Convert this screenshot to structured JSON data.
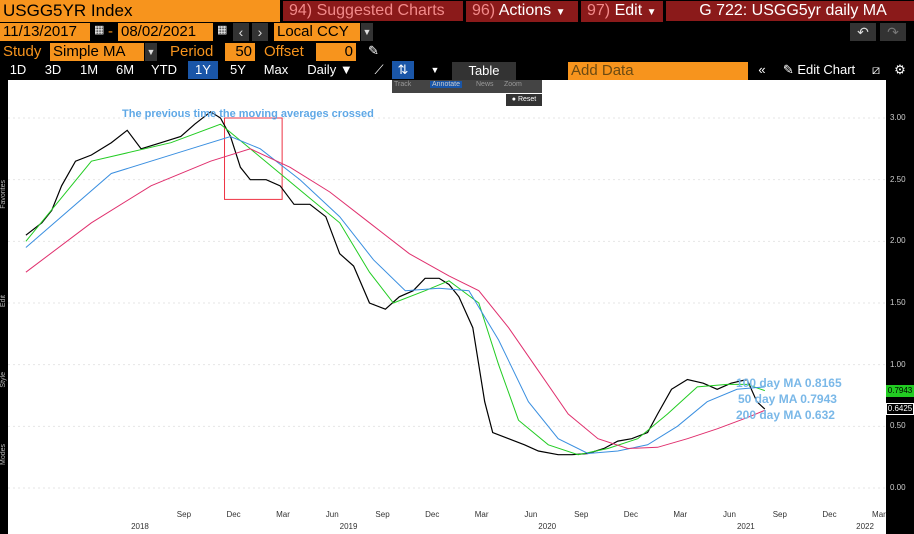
{
  "header": {
    "ticker": "USGG5YR Index",
    "suggested": "Suggested Charts",
    "suggested_num": "94)",
    "actions": "Actions",
    "actions_num": "96)",
    "edit": "Edit",
    "edit_num": "97)",
    "chart_id": "G 722: USGG5yr daily MA"
  },
  "range": {
    "start": "11/13/2017",
    "sep": "-",
    "end": "08/02/2021",
    "currency": "Local CCY"
  },
  "study": {
    "label": "Study",
    "value": "Simple MA",
    "period_label": "Period",
    "period": "50",
    "offset_label": "Offset",
    "offset": "0"
  },
  "toolbar": {
    "periods": [
      "1D",
      "3D",
      "1M",
      "6M",
      "YTD",
      "1Y",
      "5Y",
      "Max"
    ],
    "selected_period": "1Y",
    "interval": "Daily",
    "table": "Table",
    "add_data": "Add Data",
    "edit_chart": "Edit Chart"
  },
  "mini_toolbar": {
    "items": [
      "Track",
      "Annotate",
      "News",
      "Zoom"
    ],
    "reset": "Reset"
  },
  "side_labels": [
    "Favorites",
    "Edit",
    "Style",
    "Modes"
  ],
  "annotation": "The previous time the moving averages crossed",
  "legend_labels": [
    {
      "text": "100 day MA 0.8165",
      "color": "#7ab8e8"
    },
    {
      "text": "50 day MA 0.7943",
      "color": "#7ab8e8"
    },
    {
      "text": "200 day MA 0.632",
      "color": "#7ab8e8"
    }
  ],
  "badges": {
    "ma50": "0.7943",
    "last": "0.6425"
  },
  "chart_data": {
    "type": "line",
    "title": "",
    "ylim": [
      0.0,
      3.0
    ],
    "y_ticks": [
      "3.00",
      "2.50",
      "2.00",
      "1.50",
      "1.00",
      "0.50",
      "0.00"
    ],
    "x_months": [
      "Sep",
      "Dec",
      "Mar",
      "Jun",
      "Sep",
      "Dec",
      "Mar",
      "Jun",
      "Sep",
      "Dec",
      "Mar",
      "Jun",
      "Sep",
      "Dec",
      "Mar"
    ],
    "x_years": [
      "2018",
      "2019",
      "2020",
      "2021",
      "2022"
    ],
    "colors": {
      "price": "#000000",
      "ma50": "#22cc22",
      "ma100": "#3a8fe0",
      "ma200": "#e0306e"
    },
    "series": [
      {
        "name": "USGG5YR Index",
        "points": [
          [
            2017.87,
            2.05
          ],
          [
            2017.95,
            2.15
          ],
          [
            2018.0,
            2.25
          ],
          [
            2018.05,
            2.45
          ],
          [
            2018.12,
            2.65
          ],
          [
            2018.2,
            2.7
          ],
          [
            2018.3,
            2.8
          ],
          [
            2018.38,
            2.9
          ],
          [
            2018.45,
            2.75
          ],
          [
            2018.55,
            2.8
          ],
          [
            2018.65,
            2.85
          ],
          [
            2018.72,
            2.95
          ],
          [
            2018.8,
            3.05
          ],
          [
            2018.85,
            3.0
          ],
          [
            2018.9,
            2.85
          ],
          [
            2018.95,
            2.6
          ],
          [
            2019.0,
            2.5
          ],
          [
            2019.08,
            2.5
          ],
          [
            2019.15,
            2.45
          ],
          [
            2019.22,
            2.3
          ],
          [
            2019.3,
            2.3
          ],
          [
            2019.38,
            2.2
          ],
          [
            2019.45,
            1.9
          ],
          [
            2019.52,
            1.8
          ],
          [
            2019.6,
            1.5
          ],
          [
            2019.68,
            1.45
          ],
          [
            2019.75,
            1.55
          ],
          [
            2019.82,
            1.6
          ],
          [
            2019.88,
            1.7
          ],
          [
            2019.95,
            1.7
          ],
          [
            2020.0,
            1.65
          ],
          [
            2020.05,
            1.55
          ],
          [
            2020.12,
            1.3
          ],
          [
            2020.18,
            0.7
          ],
          [
            2020.22,
            0.45
          ],
          [
            2020.3,
            0.4
          ],
          [
            2020.38,
            0.35
          ],
          [
            2020.45,
            0.3
          ],
          [
            2020.55,
            0.27
          ],
          [
            2020.62,
            0.27
          ],
          [
            2020.7,
            0.28
          ],
          [
            2020.78,
            0.32
          ],
          [
            2020.85,
            0.38
          ],
          [
            2020.92,
            0.4
          ],
          [
            2021.0,
            0.45
          ],
          [
            2021.05,
            0.6
          ],
          [
            2021.12,
            0.8
          ],
          [
            2021.2,
            0.88
          ],
          [
            2021.28,
            0.85
          ],
          [
            2021.35,
            0.8
          ],
          [
            2021.42,
            0.85
          ],
          [
            2021.5,
            0.88
          ],
          [
            2021.55,
            0.7
          ],
          [
            2021.59,
            0.64
          ]
        ]
      },
      {
        "name": "50 day MA",
        "points": [
          [
            2017.87,
            2.0
          ],
          [
            2018.2,
            2.65
          ],
          [
            2018.6,
            2.8
          ],
          [
            2018.85,
            2.95
          ],
          [
            2019.0,
            2.75
          ],
          [
            2019.15,
            2.55
          ],
          [
            2019.3,
            2.35
          ],
          [
            2019.45,
            2.15
          ],
          [
            2019.6,
            1.75
          ],
          [
            2019.72,
            1.5
          ],
          [
            2019.88,
            1.6
          ],
          [
            2020.0,
            1.68
          ],
          [
            2020.15,
            1.5
          ],
          [
            2020.25,
            1.0
          ],
          [
            2020.35,
            0.55
          ],
          [
            2020.5,
            0.35
          ],
          [
            2020.65,
            0.27
          ],
          [
            2020.8,
            0.32
          ],
          [
            2020.95,
            0.4
          ],
          [
            2021.1,
            0.6
          ],
          [
            2021.25,
            0.82
          ],
          [
            2021.4,
            0.84
          ],
          [
            2021.5,
            0.84
          ],
          [
            2021.59,
            0.79
          ]
        ]
      },
      {
        "name": "100 day MA",
        "points": [
          [
            2017.87,
            1.95
          ],
          [
            2018.3,
            2.55
          ],
          [
            2018.7,
            2.75
          ],
          [
            2018.9,
            2.85
          ],
          [
            2019.05,
            2.75
          ],
          [
            2019.25,
            2.5
          ],
          [
            2019.45,
            2.2
          ],
          [
            2019.62,
            1.85
          ],
          [
            2019.78,
            1.6
          ],
          [
            2019.95,
            1.62
          ],
          [
            2020.1,
            1.6
          ],
          [
            2020.25,
            1.2
          ],
          [
            2020.4,
            0.7
          ],
          [
            2020.55,
            0.4
          ],
          [
            2020.7,
            0.28
          ],
          [
            2020.85,
            0.3
          ],
          [
            2021.0,
            0.35
          ],
          [
            2021.15,
            0.5
          ],
          [
            2021.3,
            0.7
          ],
          [
            2021.45,
            0.8
          ],
          [
            2021.59,
            0.82
          ]
        ]
      },
      {
        "name": "200 day MA",
        "points": [
          [
            2017.87,
            1.75
          ],
          [
            2018.2,
            2.15
          ],
          [
            2018.5,
            2.45
          ],
          [
            2018.8,
            2.65
          ],
          [
            2019.0,
            2.75
          ],
          [
            2019.2,
            2.6
          ],
          [
            2019.4,
            2.4
          ],
          [
            2019.6,
            2.15
          ],
          [
            2019.8,
            1.9
          ],
          [
            2020.0,
            1.72
          ],
          [
            2020.15,
            1.6
          ],
          [
            2020.3,
            1.3
          ],
          [
            2020.45,
            0.95
          ],
          [
            2020.6,
            0.6
          ],
          [
            2020.75,
            0.4
          ],
          [
            2020.9,
            0.32
          ],
          [
            2021.05,
            0.33
          ],
          [
            2021.2,
            0.4
          ],
          [
            2021.35,
            0.48
          ],
          [
            2021.5,
            0.57
          ],
          [
            2021.59,
            0.63
          ]
        ]
      }
    ]
  }
}
